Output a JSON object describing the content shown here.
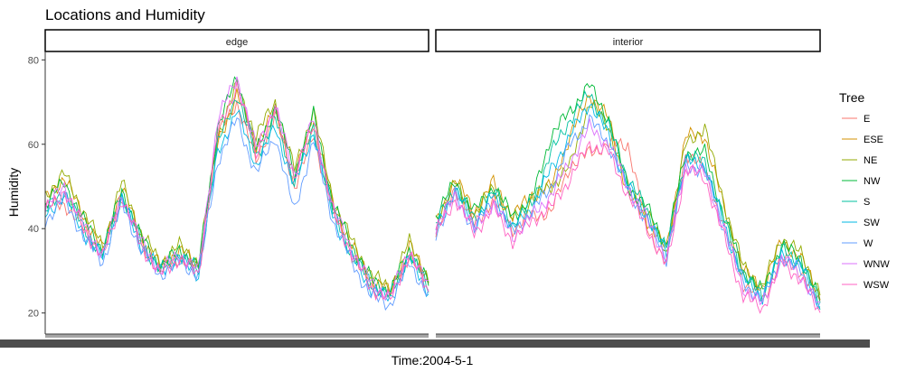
{
  "chart_data": {
    "type": "line",
    "title": "Locations and Humidity",
    "xlabel": "Time:2004-5-1",
    "ylabel": "Humidity",
    "ylim": [
      15,
      82
    ],
    "yticks": [
      20,
      40,
      60,
      80
    ],
    "grid": false,
    "legend": {
      "title": "Tree",
      "placement": "right"
    },
    "panels": [
      "edge",
      "interior"
    ],
    "anchors": [
      0,
      0.05,
      0.1,
      0.15,
      0.2,
      0.25,
      0.3,
      0.35,
      0.4,
      0.45,
      0.5,
      0.55,
      0.6,
      0.65,
      0.7,
      0.75,
      0.8,
      0.85,
      0.9,
      0.95,
      1
    ],
    "series": [
      {
        "name": "E",
        "color": "#F8766D",
        "edge": [
          45,
          46,
          40,
          34,
          48,
          36,
          30,
          33,
          30,
          62,
          70,
          56,
          67,
          50,
          62,
          44,
          34,
          26,
          24,
          34,
          26
        ],
        "interior": [
          38,
          50,
          41,
          47,
          40,
          43,
          44,
          55,
          58,
          60,
          60,
          40,
          32,
          58,
          54,
          40,
          27,
          23,
          33,
          30,
          22
        ]
      },
      {
        "name": "ESE",
        "color": "#D39200",
        "edge": [
          47,
          52,
          43,
          35,
          50,
          38,
          31,
          35,
          31,
          60,
          72,
          60,
          68,
          52,
          66,
          46,
          36,
          28,
          25,
          36,
          28
        ],
        "interior": [
          41,
          52,
          44,
          51,
          43,
          48,
          50,
          62,
          72,
          66,
          48,
          42,
          35,
          62,
          62,
          45,
          30,
          26,
          37,
          33,
          24
        ]
      },
      {
        "name": "NE",
        "color": "#93AA00",
        "edge": [
          48,
          53,
          44,
          36,
          51,
          39,
          32,
          36,
          32,
          62,
          74,
          62,
          70,
          54,
          68,
          47,
          37,
          29,
          26,
          37,
          28
        ],
        "interior": [
          42,
          51,
          43,
          50,
          42,
          47,
          50,
          55,
          70,
          64,
          50,
          44,
          34,
          60,
          64,
          46,
          31,
          26,
          38,
          34,
          25
        ]
      },
      {
        "name": "NW",
        "color": "#00BA38",
        "edge": [
          46,
          51,
          42,
          35,
          49,
          38,
          31,
          35,
          31,
          64,
          76,
          58,
          69,
          53,
          67,
          46,
          36,
          28,
          25,
          35,
          27
        ],
        "interior": [
          43,
          51,
          44,
          50,
          43,
          47,
          62,
          68,
          74,
          66,
          50,
          45,
          36,
          58,
          58,
          43,
          30,
          25,
          36,
          33,
          23
        ]
      },
      {
        "name": "S",
        "color": "#00C19F",
        "edge": [
          44,
          49,
          40,
          34,
          48,
          37,
          30,
          34,
          30,
          60,
          72,
          57,
          66,
          51,
          64,
          44,
          34,
          27,
          24,
          34,
          26
        ],
        "interior": [
          41,
          50,
          42,
          49,
          41,
          46,
          58,
          66,
          72,
          64,
          52,
          44,
          35,
          57,
          56,
          42,
          29,
          24,
          35,
          32,
          22
        ]
      },
      {
        "name": "SW",
        "color": "#00B9E3",
        "edge": [
          43,
          48,
          39,
          33,
          47,
          36,
          30,
          33,
          29,
          58,
          68,
          55,
          64,
          50,
          63,
          43,
          33,
          26,
          23,
          33,
          25
        ],
        "interior": [
          40,
          49,
          41,
          48,
          40,
          45,
          54,
          62,
          70,
          62,
          50,
          43,
          34,
          56,
          55,
          41,
          28,
          24,
          34,
          31,
          22
        ]
      },
      {
        "name": "W",
        "color": "#619CFF",
        "edge": [
          42,
          47,
          38,
          32,
          46,
          35,
          29,
          32,
          29,
          56,
          66,
          53,
          62,
          44,
          61,
          42,
          32,
          24,
          22,
          32,
          24
        ],
        "interior": [
          39,
          48,
          40,
          47,
          39,
          44,
          50,
          60,
          66,
          60,
          49,
          42,
          33,
          55,
          54,
          40,
          27,
          23,
          33,
          30,
          21
        ]
      },
      {
        "name": "WNW",
        "color": "#DB72FB",
        "edge": [
          45,
          50,
          41,
          34,
          48,
          37,
          30,
          34,
          30,
          66,
          76,
          59,
          69,
          53,
          66,
          45,
          35,
          27,
          24,
          35,
          26
        ],
        "interior": [
          40,
          48,
          40,
          46,
          38,
          43,
          48,
          56,
          64,
          60,
          50,
          42,
          33,
          55,
          53,
          40,
          26,
          22,
          33,
          29,
          21
        ]
      },
      {
        "name": "WSW",
        "color": "#FF61C3",
        "edge": [
          44,
          49,
          40,
          33,
          47,
          36,
          29,
          33,
          29,
          63,
          74,
          58,
          68,
          52,
          65,
          44,
          34,
          26,
          23,
          34,
          25
        ],
        "interior": [
          39,
          47,
          39,
          45,
          37,
          42,
          45,
          52,
          60,
          58,
          48,
          40,
          31,
          54,
          52,
          38,
          24,
          21,
          32,
          28,
          20
        ]
      }
    ]
  }
}
